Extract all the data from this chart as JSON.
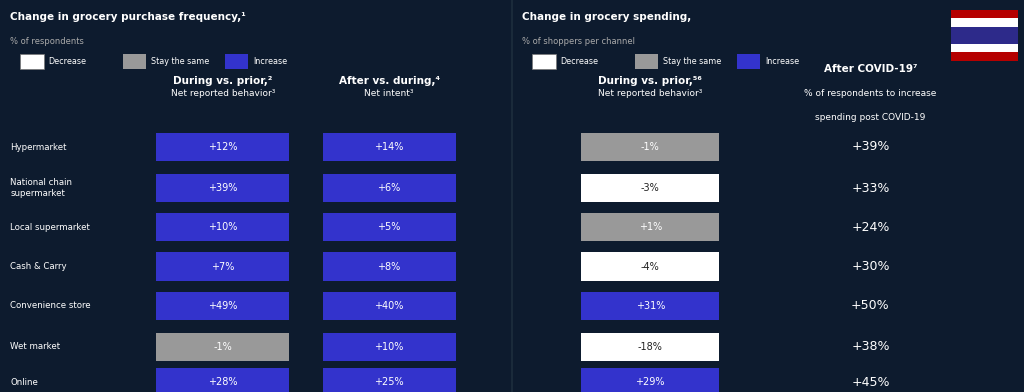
{
  "bg_color": "#0d1b2e",
  "blue_color": "#3333cc",
  "gray_color": "#999999",
  "white_color": "#ffffff",
  "text_color": "#ffffff",
  "categories": [
    "Hypermarket",
    "National chain\nsupermarket",
    "Local supermarket",
    "Cash & Carry",
    "Convenience store",
    "Wet market",
    "Online"
  ],
  "left_title": "Change in grocery purchase frequency,¹",
  "left_subtitle": "% of respondents",
  "left_col1_title": "During vs. prior,²",
  "left_col1_sub": "Net reported behavior³",
  "left_col2_title": "After vs. during,⁴",
  "left_col2_sub": "Net intent³",
  "right_title": "Change in grocery spending,",
  "right_subtitle": "% of shoppers per channel",
  "right_col1_title": "During vs. prior,⁵⁶",
  "right_col1_sub": "Net reported behavior³",
  "right_col2_title": "After COVID-19⁷",
  "right_col2_sub": "% of respondents to increase\nspending post COVID-19",
  "freq_during": [
    12,
    39,
    10,
    7,
    49,
    -1,
    28
  ],
  "freq_during_colors": [
    "blue",
    "blue",
    "blue",
    "blue",
    "blue",
    "gray",
    "blue"
  ],
  "freq_after": [
    14,
    6,
    5,
    8,
    40,
    10,
    25
  ],
  "freq_after_colors": [
    "blue",
    "blue",
    "blue",
    "blue",
    "blue",
    "blue",
    "blue"
  ],
  "spend_during": [
    -1,
    -3,
    1,
    -4,
    31,
    -18,
    29
  ],
  "spend_during_colors": [
    "gray",
    "white",
    "gray",
    "white",
    "blue",
    "white",
    "blue"
  ],
  "spend_after_vals": [
    39,
    33,
    24,
    30,
    50,
    38,
    45
  ],
  "flag_colors": [
    "#B50000",
    "#ffffff",
    "#2D2A8A",
    "#ffffff",
    "#B50000"
  ],
  "divider_color": "#1a2a3a"
}
